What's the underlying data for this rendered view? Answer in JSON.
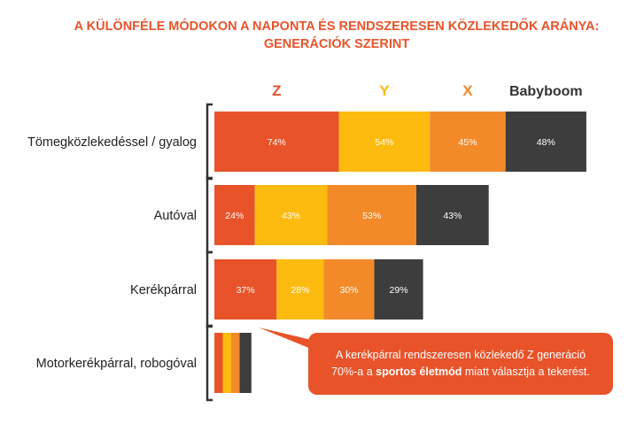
{
  "title": {
    "line1": "A KÜLÖNFÉLE MÓDOKON A NAPONTA ÉS RENDSZERESEN KÖZLEKEDŐK ARÁNYA:",
    "line2": "GENERÁCIÓK SZERINT"
  },
  "colors": {
    "Z": "#e8532a",
    "Y": "#fdbb10",
    "X": "#f28a2a",
    "Babyboom": "#3d3d3d",
    "title": "#e8532a"
  },
  "chart_data": {
    "type": "bar",
    "stacked": true,
    "orientation": "horizontal",
    "categories": [
      "Tömegközlekedéssel / gyalog",
      "Autóval",
      "Kerékpárral",
      "Motorkerékpárral, robogóval"
    ],
    "series": [
      {
        "name": "Z",
        "values": [
          74,
          24,
          37,
          5
        ],
        "labels": [
          "74%",
          "24%",
          "37%",
          ""
        ]
      },
      {
        "name": "Y",
        "values": [
          54,
          43,
          28,
          5
        ],
        "labels": [
          "54%",
          "43%",
          "28%",
          ""
        ]
      },
      {
        "name": "X",
        "values": [
          45,
          53,
          30,
          5
        ],
        "labels": [
          "45%",
          "53%",
          "30%",
          ""
        ]
      },
      {
        "name": "Babyboom",
        "values": [
          48,
          43,
          29,
          7
        ],
        "labels": [
          "48%",
          "43%",
          "29%",
          ""
        ]
      }
    ],
    "legend": "top",
    "grid": false
  },
  "callout": {
    "line1": "A kerékpárral rendszeresen közlekedő Z generáció",
    "line2_before": "70%-a a ",
    "line2_bold": "sportos életmód",
    "line2_after": " miatt választja a tekerést."
  }
}
